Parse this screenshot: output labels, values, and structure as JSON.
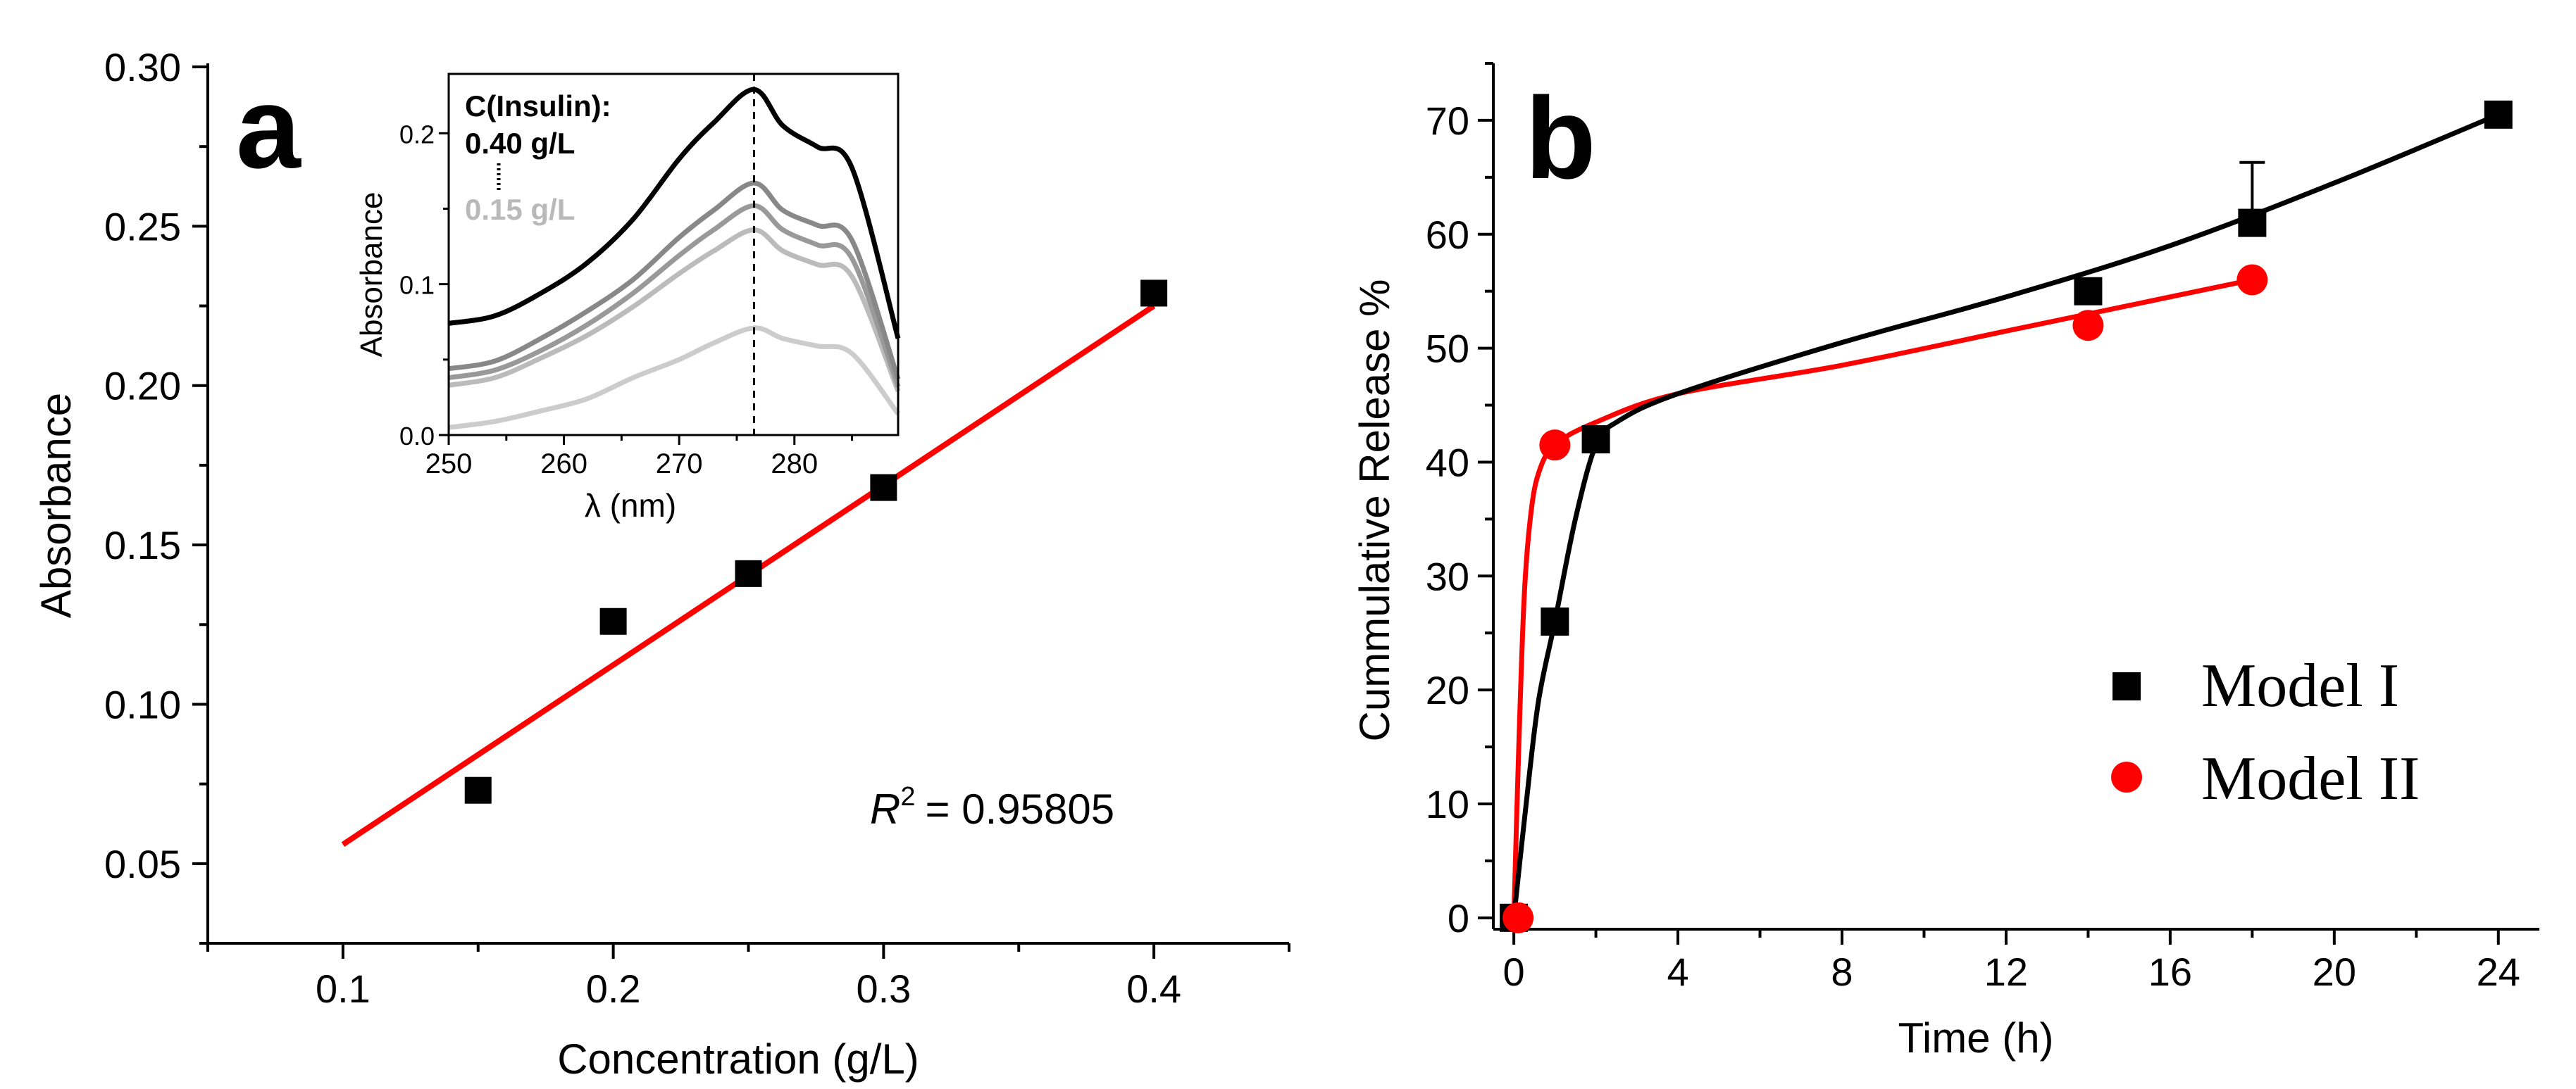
{
  "panels": {
    "a": {
      "letter": "a",
      "xlabel": "Concentration (g/L)",
      "ylabel": "Absorbance",
      "x_ticks": [
        "0.1",
        "0.2",
        "0.3",
        "0.4"
      ],
      "y_ticks": [
        "0.05",
        "0.10",
        "0.15",
        "0.20",
        "0.25",
        "0.30"
      ],
      "r2_prefix": "R",
      "r2_sup": "2",
      "r2_value": "= 0.95805",
      "fit_color": "#ff0000",
      "inset": {
        "xlabel": "λ (nm)",
        "ylabel": "Absorbance",
        "x_ticks": [
          "250",
          "260",
          "270",
          "280"
        ],
        "y_ticks": [
          "0.0",
          "0.1",
          "0.2"
        ],
        "legend_title": "C(Insulin):",
        "legend_high": "0.40 g/L",
        "legend_low": "0.15 g/L"
      }
    },
    "b": {
      "letter": "b",
      "xlabel": "Time (h)",
      "ylabel": "Cummulative Release %",
      "x_ticks": [
        "0",
        "4",
        "8",
        "12",
        "16",
        "20",
        "24"
      ],
      "y_ticks": [
        "0",
        "10",
        "20",
        "30",
        "40",
        "50",
        "60",
        "70"
      ],
      "legend": [
        "Model I",
        "Model II"
      ]
    }
  },
  "chart_data": [
    {
      "type": "scatter",
      "panel": "a",
      "xlabel": "Concentration (g/L)",
      "ylabel": "Absorbance",
      "xlim": [
        0.05,
        0.45
      ],
      "ylim": [
        0.025,
        0.3
      ],
      "series": [
        {
          "points": [
            [
              0.15,
              0.073
            ],
            [
              0.2,
              0.126
            ],
            [
              0.25,
              0.141
            ],
            [
              0.3,
              0.168
            ],
            [
              0.4,
              0.229
            ]
          ],
          "marker": "square",
          "color": "#000000"
        }
      ],
      "fit_line": {
        "x": [
          0.1,
          0.4
        ],
        "y": [
          0.056,
          0.225
        ],
        "color": "#ff0000",
        "r2": "0.95805"
      }
    },
    {
      "type": "line",
      "panel": "a-inset",
      "xlabel": "λ (nm)",
      "ylabel": "Absorbance",
      "xlim": [
        250,
        289
      ],
      "ylim": [
        0.0,
        0.23
      ],
      "vline_x": 276.5,
      "x": [
        250,
        254,
        258,
        262,
        266,
        270,
        273,
        276.5,
        279,
        282,
        285,
        289
      ],
      "series": [
        {
          "values": [
            0.074,
            0.079,
            0.094,
            0.114,
            0.143,
            0.183,
            0.207,
            0.229,
            0.205,
            0.191,
            0.177,
            0.064
          ],
          "color": "#000000"
        },
        {
          "values": [
            0.044,
            0.049,
            0.064,
            0.082,
            0.103,
            0.131,
            0.149,
            0.167,
            0.149,
            0.139,
            0.129,
            0.037
          ],
          "color": "#888888"
        },
        {
          "values": [
            0.038,
            0.043,
            0.056,
            0.073,
            0.094,
            0.119,
            0.136,
            0.152,
            0.136,
            0.126,
            0.117,
            0.032
          ],
          "color": "#999999"
        },
        {
          "values": [
            0.033,
            0.038,
            0.051,
            0.066,
            0.085,
            0.107,
            0.122,
            0.136,
            0.122,
            0.113,
            0.105,
            0.029
          ],
          "color": "#bbbbbb"
        },
        {
          "values": [
            0.005,
            0.009,
            0.016,
            0.024,
            0.038,
            0.05,
            0.061,
            0.071,
            0.064,
            0.059,
            0.054,
            0.014
          ],
          "color": "#cccccc"
        }
      ]
    },
    {
      "type": "line",
      "panel": "b",
      "xlabel": "Time (h)",
      "ylabel": "Cummulative Release %",
      "xlim": [
        -0.5,
        25
      ],
      "ylim": [
        -1,
        75
      ],
      "series": [
        {
          "name": "Model I",
          "color": "#000000",
          "marker": "square",
          "points": [
            [
              0,
              0
            ],
            [
              1,
              26
            ],
            [
              2,
              42
            ],
            [
              14,
              55
            ],
            [
              18,
              61
            ],
            [
              24,
              70.5
            ]
          ],
          "error": [
            [
              18,
              5.3
            ]
          ],
          "curve": [
            [
              0,
              0
            ],
            [
              0.3,
              10
            ],
            [
              0.6,
              19
            ],
            [
              1,
              26
            ],
            [
              1.5,
              35
            ],
            [
              2,
              41.5
            ],
            [
              2.5,
              43.5
            ],
            [
              4,
              46
            ],
            [
              8,
              50.5
            ],
            [
              12,
              54.5
            ],
            [
              16,
              59
            ],
            [
              20,
              64.5
            ],
            [
              24,
              70.5
            ]
          ]
        },
        {
          "name": "Model II",
          "color": "#ff0000",
          "marker": "circle",
          "points": [
            [
              0,
              0
            ],
            [
              1,
              41.5
            ],
            [
              14,
              52
            ],
            [
              18,
              56
            ]
          ],
          "curve": [
            [
              0,
              0
            ],
            [
              0.12,
              15
            ],
            [
              0.25,
              28
            ],
            [
              0.4,
              35
            ],
            [
              0.6,
              39
            ],
            [
              1,
              41.5
            ],
            [
              2,
              43.5
            ],
            [
              4,
              46
            ],
            [
              8,
              48.5
            ],
            [
              12,
              51.5
            ],
            [
              14,
              53
            ],
            [
              18,
              56
            ]
          ]
        }
      ]
    }
  ]
}
